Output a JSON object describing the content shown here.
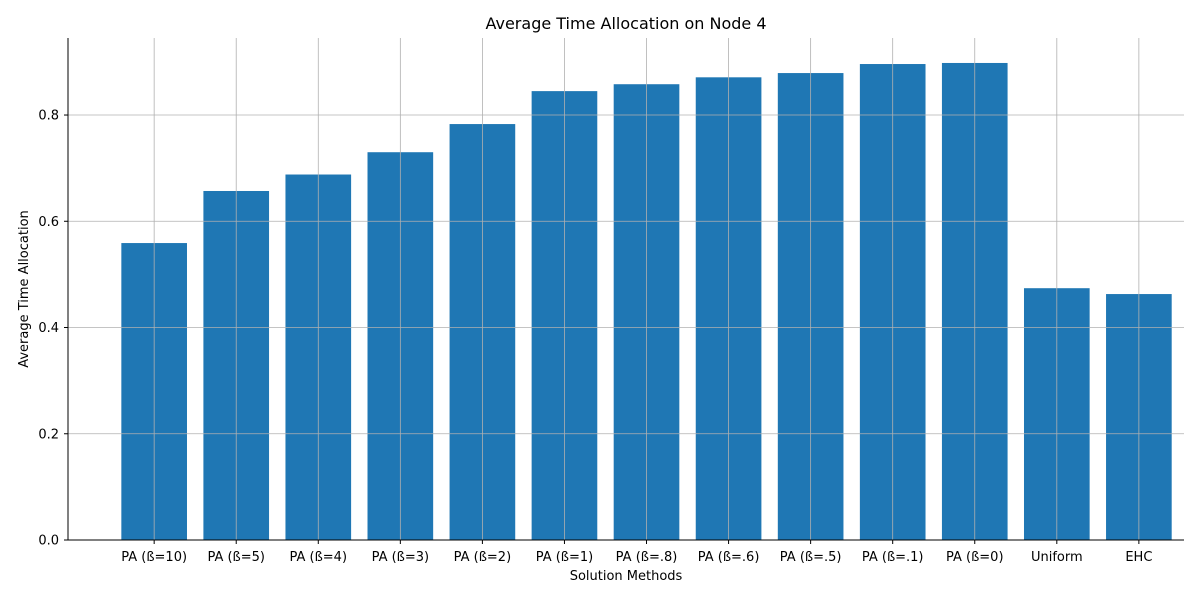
{
  "chart_data": {
    "type": "bar",
    "title": "Average Time Allocation on Node 4",
    "xlabel": "Solution Methods",
    "ylabel": "Average Time Allocation",
    "categories": [
      "PA (ß=10)",
      "PA (ß=5)",
      "PA (ß=4)",
      "PA (ß=3)",
      "PA (ß=2)",
      "PA (ß=1)",
      "PA (ß=.8)",
      "PA (ß=.6)",
      "PA (ß=.5)",
      "PA (ß=.1)",
      "PA (ß=0)",
      "Uniform",
      "EHC"
    ],
    "values": [
      0.559,
      0.657,
      0.688,
      0.73,
      0.783,
      0.845,
      0.858,
      0.871,
      0.879,
      0.896,
      0.898,
      0.474,
      0.463
    ],
    "ylim": [
      0,
      0.945
    ],
    "yticks": [
      0.0,
      0.2,
      0.4,
      0.6,
      0.8
    ],
    "ytick_labels": [
      "0.0",
      "0.2",
      "0.4",
      "0.6",
      "0.8"
    ],
    "grid": true,
    "bar_color": "#1f77b4",
    "grid_color": "#b0b0b0"
  }
}
